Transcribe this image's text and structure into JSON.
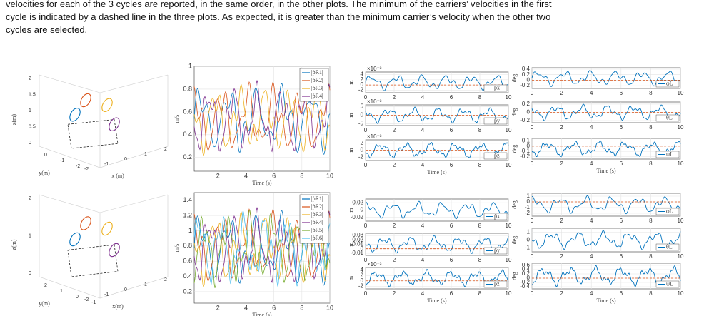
{
  "paragraph": {
    "lines": [
      "velocities for each of the 3 cycles are reported, in the same order, in the other plots. The minimum of the carriers’ velocities in the first",
      "cycle is indicated by a dashed line in the three plots. As expected, it is greater than the minimum carrier’s velocity when the other two",
      "cycles are selected."
    ]
  },
  "rows": [
    {
      "view3d": {
        "zlabel": "z(m)",
        "ylabel": "y(m)",
        "xlabel": "x (m)",
        "zticks": [
          2,
          1.5,
          1,
          0.5,
          0
        ],
        "yticks": [
          0,
          -1,
          -2
        ],
        "xticks": [
          -2,
          -1,
          0,
          1,
          2
        ]
      },
      "velocity": {
        "ylabel": "m/s",
        "xlabel": "Time (s)",
        "ylim": [
          0.08,
          1.0
        ],
        "yticks": [
          0.2,
          0.4,
          0.6,
          0.8,
          1
        ],
        "xlim": [
          0.3,
          10
        ],
        "xticks": [
          2,
          4,
          6,
          8,
          10
        ],
        "legend": [
          "|ṗR1|",
          "|ṗR2|",
          "|ṗR3|",
          "|ṗR4|"
        ]
      },
      "position": [
        {
          "ylabel": "m",
          "exponent": "×10⁻³",
          "ylim": [
            -3,
            5
          ],
          "yticks": [
            4,
            2,
            0,
            -2
          ],
          "xlim": [
            0,
            10
          ],
          "xticks": [
            0,
            2,
            4,
            6,
            8,
            10
          ],
          "legend": "p̃x"
        },
        {
          "ylabel": "m",
          "exponent": "×10⁻³",
          "ylim": [
            -6,
            6
          ],
          "yticks": [
            5,
            0,
            -5
          ],
          "xlim": [
            0,
            10
          ],
          "xticks": [
            0,
            2,
            4,
            6,
            8,
            10
          ],
          "legend": "p̃y"
        },
        {
          "ylabel": "m",
          "exponent": "×10⁻³",
          "ylim": [
            -3,
            3
          ],
          "yticks": [
            2,
            0,
            -2
          ],
          "xlim": [
            0,
            10
          ],
          "xticks": [
            0,
            2,
            4,
            6,
            8,
            10
          ],
          "legend": "p̃z",
          "xlabel": "Time (s)"
        }
      ],
      "orientation": [
        {
          "ylabel": "deg",
          "ylim": [
            -0.3,
            0.45
          ],
          "yticks": [
            0.4,
            0.2,
            0,
            -0.2
          ],
          "xlim": [
            0,
            10
          ],
          "xticks": [
            0,
            2,
            4,
            6,
            8,
            10
          ],
          "legend": "φL"
        },
        {
          "ylabel": "deg",
          "ylim": [
            -0.25,
            0.25
          ],
          "yticks": [
            0.2,
            0,
            -0.2
          ],
          "xlim": [
            0,
            10
          ],
          "xticks": [
            0,
            2,
            4,
            6,
            8,
            10
          ],
          "legend": "θL"
        },
        {
          "ylabel": "deg",
          "ylim": [
            -0.25,
            0.15
          ],
          "yticks": [
            0.1,
            0,
            -0.1,
            -0.2
          ],
          "xlim": [
            0,
            10
          ],
          "xticks": [
            0,
            2,
            4,
            6,
            8,
            10
          ],
          "legend": "ψL",
          "xlabel": "Time (s)"
        }
      ]
    },
    {
      "view3d": {
        "zlabel": "z(m)",
        "ylabel": "y(m)",
        "xlabel": "x(m)",
        "zticks": [
          2,
          1,
          0
        ],
        "yticks": [
          2,
          1,
          0,
          -1
        ],
        "xticks": [
          -2,
          -1,
          0,
          1,
          2
        ]
      },
      "velocity": {
        "ylabel": "m/s",
        "xlabel": "Time (s)",
        "ylim": [
          0.05,
          1.5
        ],
        "yticks": [
          0.2,
          0.4,
          0.6,
          0.8,
          1,
          1.2,
          1.4
        ],
        "xlim": [
          0.3,
          10
        ],
        "xticks": [
          2,
          4,
          6,
          8,
          10
        ],
        "legend": [
          "|ṗR1|",
          "|ṗR2|",
          "|ṗR3|",
          "|ṗR4|",
          "|ṗR5|",
          "|ṗR6|"
        ]
      },
      "position": [
        {
          "ylabel": "m",
          "ylim": [
            -0.03,
            0.03
          ],
          "yticks": [
            0.02,
            0,
            -0.02
          ],
          "xlim": [
            0,
            10
          ],
          "xticks": [
            0,
            2,
            4,
            6,
            8,
            10
          ],
          "legend": "p̃x"
        },
        {
          "ylabel": "m",
          "ylim": [
            -0.015,
            0.035
          ],
          "yticks": [
            0.03,
            0.02,
            0.01,
            0,
            -0.01
          ],
          "xlim": [
            0,
            10
          ],
          "xticks": [
            0,
            2,
            4,
            6,
            8,
            10
          ],
          "legend": "p̃y"
        },
        {
          "ylabel": "m",
          "exponent": "×10⁻³",
          "ylim": [
            -3,
            5
          ],
          "yticks": [
            4,
            2,
            0,
            -2
          ],
          "xlim": [
            0,
            10
          ],
          "xticks": [
            0,
            2,
            4,
            6,
            8,
            10
          ],
          "legend": "p̃z",
          "xlabel": "Time (s)"
        }
      ],
      "orientation": [
        {
          "ylabel": "deg",
          "ylim": [
            -2.5,
            1.5
          ],
          "yticks": [
            1,
            0,
            -1,
            -2
          ],
          "xlim": [
            0,
            10
          ],
          "xticks": [
            0,
            2,
            4,
            6,
            8,
            10
          ],
          "legend": "φL"
        },
        {
          "ylabel": "deg",
          "ylim": [
            -1.5,
            1.5
          ],
          "yticks": [
            1,
            0,
            -1
          ],
          "xlim": [
            0,
            10
          ],
          "xticks": [
            0,
            2,
            4,
            6,
            8,
            10
          ],
          "legend": "θL"
        },
        {
          "ylabel": "deg",
          "ylim": [
            -0.5,
            0.7
          ],
          "yticks": [
            0.6,
            0.4,
            0.2,
            0,
            -0.2,
            -0.4
          ],
          "xlim": [
            0,
            10
          ],
          "xticks": [
            0,
            2,
            4,
            6,
            8,
            10
          ],
          "legend": "ψL",
          "xlabel": "Time (s)"
        }
      ]
    }
  ]
}
